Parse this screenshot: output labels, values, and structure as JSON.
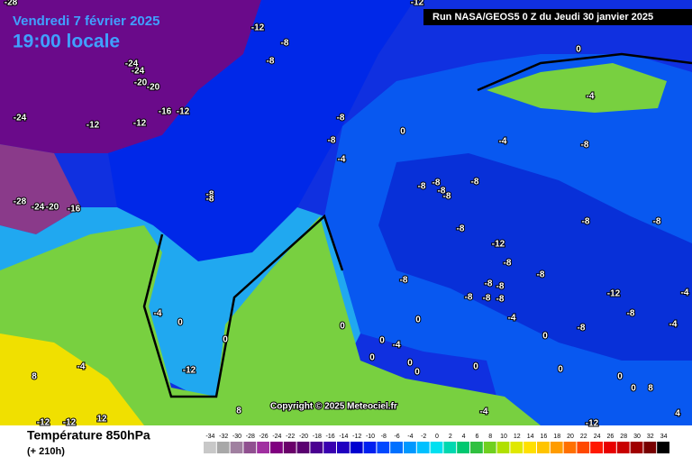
{
  "header": {
    "date": "Vendredi 7 février 2025",
    "time": "19:00 locale",
    "run": "Run NASA/GEOS5 0 Z du Jeudi 30 janvier 2025"
  },
  "copyright": "Copyright © 2025 Meteociel.fr",
  "legend": {
    "title": "Température 850hPa",
    "lead": "(+ 210h)",
    "scale": {
      "values": [
        -34,
        -32,
        -30,
        -28,
        -26,
        -24,
        -22,
        -20,
        -18,
        -16,
        -14,
        -12,
        -10,
        -8,
        -6,
        -4,
        -2,
        0,
        2,
        4,
        6,
        8,
        10,
        12,
        14,
        16,
        18,
        20,
        22,
        24,
        26,
        28,
        30,
        32,
        34
      ],
      "colors": [
        "#c8c8c8",
        "#a8a8a8",
        "#a080a0",
        "#905090",
        "#a030a0",
        "#800080",
        "#6a006a",
        "#5a0070",
        "#4a0090",
        "#3a00b0",
        "#2000c0",
        "#0000d0",
        "#0020f0",
        "#0048ff",
        "#0070ff",
        "#0098ff",
        "#00c0ff",
        "#00e0f0",
        "#00d8b0",
        "#00c870",
        "#30c040",
        "#70d020",
        "#b0e000",
        "#e0e800",
        "#ffe000",
        "#ffc400",
        "#ff9c00",
        "#ff7000",
        "#ff4800",
        "#ff1800",
        "#e80000",
        "#c80000",
        "#a00000",
        "#780000",
        "#000000"
      ]
    }
  },
  "contour_labels": [
    -28,
    -12,
    -8,
    -8,
    -24,
    -24,
    -20,
    -20,
    -24,
    -12,
    -12,
    -16,
    -12,
    -12,
    0,
    -4,
    -8,
    -8,
    -4,
    0,
    -4,
    -8,
    -8,
    -8,
    -28,
    -24,
    -20,
    -16,
    -8,
    -8,
    -8,
    -8,
    -8,
    -8,
    -8,
    -8,
    -12,
    -8,
    -8,
    -8,
    -8,
    -8,
    -8,
    -8,
    -12,
    -8,
    -4,
    -8,
    -8,
    -4,
    -4,
    0,
    -4,
    0,
    0,
    0,
    0,
    -4,
    0,
    0,
    0,
    0,
    -12,
    8,
    -4,
    0,
    0,
    0,
    0,
    8,
    8,
    -4,
    4,
    -12,
    -12,
    -12,
    12
  ]
}
